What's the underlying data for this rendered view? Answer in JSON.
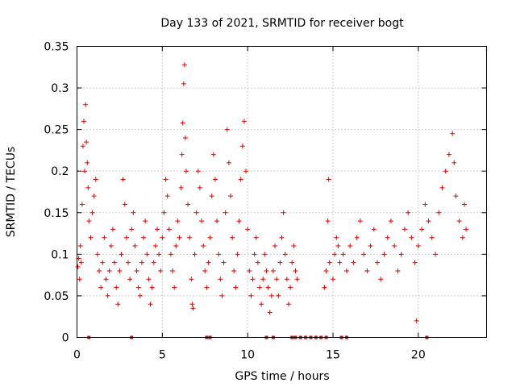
{
  "chart_data": {
    "type": "scatter",
    "title": "Day 133 of 2021, SRMTID for receiver bogt",
    "xlabel": "GPS time / hours",
    "ylabel": "SRMTID / TECUs",
    "xlim": [
      0,
      24
    ],
    "ylim": [
      0,
      0.35
    ],
    "x_ticks": [
      {
        "value": 0,
        "label": "0"
      },
      {
        "value": 5,
        "label": "5"
      },
      {
        "value": 10,
        "label": "10"
      },
      {
        "value": 15,
        "label": "15"
      },
      {
        "value": 20,
        "label": "20"
      }
    ],
    "y_ticks": [
      {
        "value": 0,
        "label": "0"
      },
      {
        "value": 0.05,
        "label": "0.05"
      },
      {
        "value": 0.1,
        "label": "0.1"
      },
      {
        "value": 0.15,
        "label": "0.15"
      },
      {
        "value": 0.2,
        "label": "0.2"
      },
      {
        "value": 0.25,
        "label": "0.25"
      },
      {
        "value": 0.3,
        "label": "0.3"
      },
      {
        "value": 0.35,
        "label": "0.35"
      }
    ],
    "grid": true,
    "marker": "+",
    "series": [
      {
        "name": "SRMTID",
        "color": "#e00000",
        "points": [
          [
            0.05,
            0.085
          ],
          [
            0.1,
            0.095
          ],
          [
            0.15,
            0.07
          ],
          [
            0.2,
            0.11
          ],
          [
            0.25,
            0.09
          ],
          [
            0.3,
            0.16
          ],
          [
            0.35,
            0.23
          ],
          [
            0.4,
            0.26
          ],
          [
            0.45,
            0.2
          ],
          [
            0.5,
            0.28
          ],
          [
            0.55,
            0.235
          ],
          [
            0.6,
            0.21
          ],
          [
            0.65,
            0.18
          ],
          [
            0.7,
            0.14
          ],
          [
            0.8,
            0.12
          ],
          [
            0.9,
            0.15
          ],
          [
            1.0,
            0.17
          ],
          [
            1.1,
            0.19
          ],
          [
            1.2,
            0.1
          ],
          [
            1.3,
            0.08
          ],
          [
            1.4,
            0.06
          ],
          [
            1.5,
            0.09
          ],
          [
            1.6,
            0.12
          ],
          [
            1.7,
            0.07
          ],
          [
            1.8,
            0.05
          ],
          [
            1.9,
            0.08
          ],
          [
            2.0,
            0.11
          ],
          [
            2.1,
            0.13
          ],
          [
            2.2,
            0.09
          ],
          [
            2.3,
            0.06
          ],
          [
            2.4,
            0.04
          ],
          [
            2.5,
            0.08
          ],
          [
            2.6,
            0.1
          ],
          [
            2.7,
            0.19
          ],
          [
            2.8,
            0.16
          ],
          [
            2.9,
            0.12
          ],
          [
            3.0,
            0.09
          ],
          [
            3.1,
            0.07
          ],
          [
            3.2,
            0.13
          ],
          [
            3.3,
            0.15
          ],
          [
            3.4,
            0.11
          ],
          [
            3.5,
            0.08
          ],
          [
            3.6,
            0.06
          ],
          [
            3.7,
            0.05
          ],
          [
            3.8,
            0.09
          ],
          [
            3.9,
            0.12
          ],
          [
            4.0,
            0.14
          ],
          [
            4.1,
            0.1
          ],
          [
            4.2,
            0.07
          ],
          [
            4.3,
            0.04
          ],
          [
            4.4,
            0.06
          ],
          [
            4.5,
            0.09
          ],
          [
            4.6,
            0.11
          ],
          [
            4.7,
            0.13
          ],
          [
            4.8,
            0.1
          ],
          [
            4.9,
            0.08
          ],
          [
            5.0,
            0.12
          ],
          [
            5.1,
            0.15
          ],
          [
            5.2,
            0.19
          ],
          [
            5.3,
            0.17
          ],
          [
            5.4,
            0.13
          ],
          [
            5.5,
            0.1
          ],
          [
            5.6,
            0.08
          ],
          [
            5.7,
            0.06
          ],
          [
            5.8,
            0.11
          ],
          [
            5.9,
            0.14
          ],
          [
            6.0,
            0.12
          ],
          [
            6.1,
            0.18
          ],
          [
            6.15,
            0.22
          ],
          [
            6.2,
            0.258
          ],
          [
            6.25,
            0.305
          ],
          [
            6.3,
            0.328
          ],
          [
            6.35,
            0.24
          ],
          [
            6.4,
            0.2
          ],
          [
            6.5,
            0.16
          ],
          [
            6.6,
            0.12
          ],
          [
            6.7,
            0.07
          ],
          [
            6.75,
            0.04
          ],
          [
            6.8,
            0.035
          ],
          [
            6.9,
            0.1
          ],
          [
            7.0,
            0.15
          ],
          [
            7.1,
            0.2
          ],
          [
            7.2,
            0.18
          ],
          [
            7.3,
            0.14
          ],
          [
            7.4,
            0.11
          ],
          [
            7.5,
            0.08
          ],
          [
            7.6,
            0.06
          ],
          [
            7.7,
            0.09
          ],
          [
            7.8,
            0.12
          ],
          [
            7.9,
            0.17
          ],
          [
            8.0,
            0.22
          ],
          [
            8.1,
            0.19
          ],
          [
            8.2,
            0.14
          ],
          [
            8.3,
            0.1
          ],
          [
            8.4,
            0.07
          ],
          [
            8.5,
            0.05
          ],
          [
            8.6,
            0.09
          ],
          [
            8.7,
            0.15
          ],
          [
            8.8,
            0.25
          ],
          [
            8.9,
            0.21
          ],
          [
            9.0,
            0.17
          ],
          [
            9.1,
            0.12
          ],
          [
            9.2,
            0.08
          ],
          [
            9.3,
            0.06
          ],
          [
            9.4,
            0.1
          ],
          [
            9.5,
            0.14
          ],
          [
            9.6,
            0.19
          ],
          [
            9.7,
            0.23
          ],
          [
            9.8,
            0.26
          ],
          [
            9.9,
            0.2
          ],
          [
            10.0,
            0.13
          ],
          [
            10.1,
            0.08
          ],
          [
            10.2,
            0.05
          ],
          [
            10.3,
            0.07
          ],
          [
            10.4,
            0.1
          ],
          [
            10.5,
            0.12
          ],
          [
            10.6,
            0.09
          ],
          [
            10.7,
            0.06
          ],
          [
            10.8,
            0.04
          ],
          [
            10.9,
            0.07
          ],
          [
            11.0,
            0.1
          ],
          [
            11.1,
            0.08
          ],
          [
            11.2,
            0.06
          ],
          [
            11.3,
            0.03
          ],
          [
            11.4,
            0.05
          ],
          [
            11.5,
            0.08
          ],
          [
            11.6,
            0.11
          ],
          [
            11.7,
            0.07
          ],
          [
            11.8,
            0.05
          ],
          [
            11.9,
            0.09
          ],
          [
            12.0,
            0.12
          ],
          [
            12.1,
            0.15
          ],
          [
            12.2,
            0.1
          ],
          [
            12.3,
            0.07
          ],
          [
            12.4,
            0.04
          ],
          [
            12.5,
            0.06
          ],
          [
            12.6,
            0.09
          ],
          [
            12.7,
            0.11
          ],
          [
            12.8,
            0.08
          ],
          [
            12.9,
            0.07
          ],
          [
            14.5,
            0.06
          ],
          [
            14.6,
            0.08
          ],
          [
            14.7,
            0.14
          ],
          [
            14.75,
            0.19
          ],
          [
            14.8,
            0.09
          ],
          [
            15.0,
            0.07
          ],
          [
            15.1,
            0.1
          ],
          [
            15.2,
            0.12
          ],
          [
            15.3,
            0.11
          ],
          [
            15.4,
            0.09
          ],
          [
            15.6,
            0.1
          ],
          [
            15.8,
            0.08
          ],
          [
            16.0,
            0.11
          ],
          [
            16.2,
            0.09
          ],
          [
            16.4,
            0.12
          ],
          [
            16.6,
            0.14
          ],
          [
            16.8,
            0.1
          ],
          [
            17.0,
            0.08
          ],
          [
            17.2,
            0.11
          ],
          [
            17.4,
            0.13
          ],
          [
            17.6,
            0.09
          ],
          [
            17.8,
            0.07
          ],
          [
            18.0,
            0.1
          ],
          [
            18.2,
            0.12
          ],
          [
            18.4,
            0.14
          ],
          [
            18.6,
            0.11
          ],
          [
            18.8,
            0.08
          ],
          [
            19.0,
            0.1
          ],
          [
            19.2,
            0.13
          ],
          [
            19.4,
            0.15
          ],
          [
            19.6,
            0.12
          ],
          [
            19.8,
            0.09
          ],
          [
            19.9,
            0.02
          ],
          [
            20.0,
            0.11
          ],
          [
            20.2,
            0.13
          ],
          [
            20.4,
            0.16
          ],
          [
            20.6,
            0.14
          ],
          [
            20.8,
            0.12
          ],
          [
            21.0,
            0.1
          ],
          [
            21.2,
            0.15
          ],
          [
            21.4,
            0.18
          ],
          [
            21.6,
            0.2
          ],
          [
            21.8,
            0.22
          ],
          [
            22.0,
            0.245
          ],
          [
            22.1,
            0.21
          ],
          [
            22.2,
            0.17
          ],
          [
            22.4,
            0.14
          ],
          [
            22.6,
            0.12
          ],
          [
            22.7,
            0.16
          ],
          [
            22.8,
            0.13
          ]
        ],
        "zero_points": [
          0.7,
          3.2,
          7.6,
          7.8,
          11.1,
          11.5,
          12.6,
          12.8,
          13.1,
          13.4,
          13.7,
          14.0,
          14.3,
          14.6,
          15.5,
          15.8,
          20.5
        ]
      }
    ]
  }
}
